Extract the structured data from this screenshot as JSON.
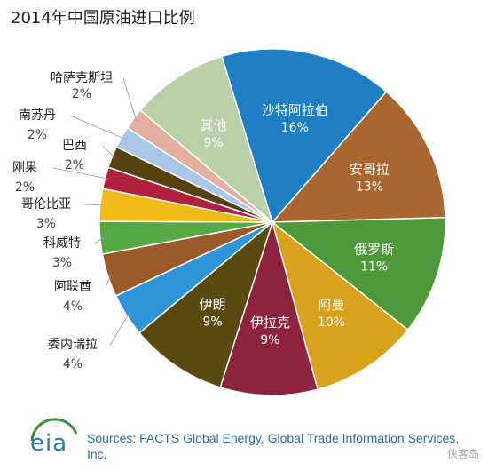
{
  "chart_data": {
    "type": "pie",
    "title": "2014年中国原油进口比例",
    "slices": [
      {
        "label": "沙特阿拉伯",
        "value_label": "16%",
        "value": 16,
        "color": "#1f7fc4"
      },
      {
        "label": "安哥拉",
        "value_label": "13%",
        "value": 13,
        "color": "#a9662f"
      },
      {
        "label": "俄罗斯",
        "value_label": "11%",
        "value": 11,
        "color": "#4e9a3a"
      },
      {
        "label": "阿曼",
        "value_label": "10%",
        "value": 10,
        "color": "#d9a21a"
      },
      {
        "label": "伊拉克",
        "value_label": "9%",
        "value": 9,
        "color": "#8e2340"
      },
      {
        "label": "伊朗",
        "value_label": "9%",
        "value": 9,
        "color": "#5a4a10"
      },
      {
        "label": "委内瑞拉",
        "value_label": "4%",
        "value": 4,
        "color": "#2e95d8"
      },
      {
        "label": "阿联酋",
        "value_label": "4%",
        "value": 4,
        "color": "#9a5a2a"
      },
      {
        "label": "科威特",
        "value_label": "3%",
        "value": 3,
        "color": "#55a844"
      },
      {
        "label": "哥伦比亚",
        "value_label": "3%",
        "value": 3,
        "color": "#f2bb16"
      },
      {
        "label": "刚果",
        "value_label": "2%",
        "value": 2,
        "color": "#b0203a"
      },
      {
        "label": "巴西",
        "value_label": "2%",
        "value": 2,
        "color": "#55420d"
      },
      {
        "label": "南苏丹",
        "value_label": "2%",
        "value": 2,
        "color": "#a8c6e8"
      },
      {
        "label": "哈萨克斯坦",
        "value_label": "2%",
        "value": 2,
        "color": "#e3b0a0"
      },
      {
        "label": "其他",
        "value_label": "9%",
        "value": 9,
        "color": "#b9d0a8"
      }
    ]
  },
  "footer": {
    "logo_text": "eia",
    "source": "Sources: FACTS Global Energy, Global Trade Information Services, Inc.",
    "watermark": "侠客岛"
  }
}
